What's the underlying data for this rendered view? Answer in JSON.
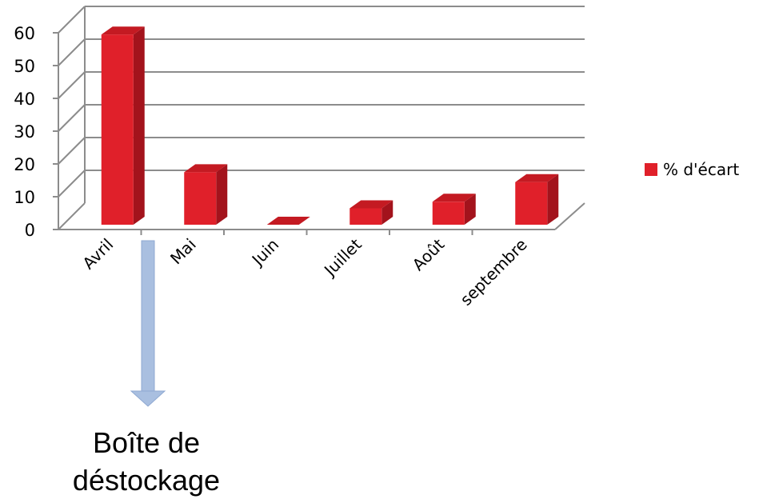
{
  "chart_data": {
    "type": "bar",
    "categories": [
      "Avril",
      "Mai",
      "Juin",
      "Juillet",
      "Août",
      "septembre"
    ],
    "series": [
      {
        "name": "% d'écart",
        "values": [
          58,
          16,
          0,
          5,
          7,
          13
        ]
      }
    ],
    "yticks": [
      "0",
      "10",
      "20",
      "30",
      "40",
      "50",
      "60"
    ],
    "ylim": [
      0,
      60
    ],
    "grid": true,
    "legend_position": "right",
    "bar_color": "#e0202a",
    "bar_side_color": "#a3131c",
    "bar_top_color": "#c41a22"
  },
  "annotation": {
    "line1": "Boîte de",
    "line2": "déstockage",
    "arrow_color": "#a9bfe0"
  }
}
